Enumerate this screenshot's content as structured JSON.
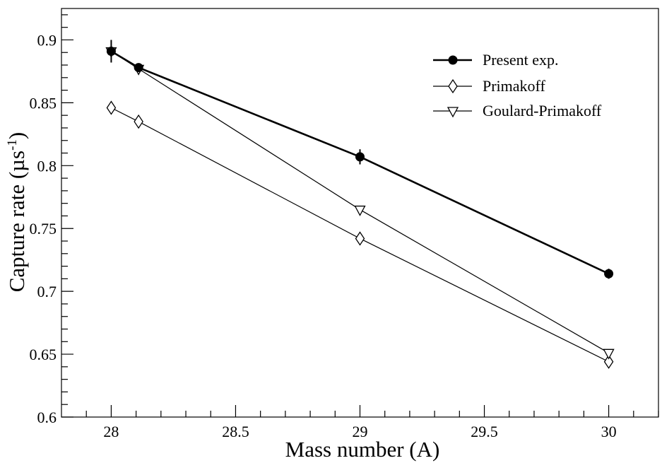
{
  "chart_data": {
    "type": "line",
    "title": "",
    "xlabel": "Mass number (A)",
    "ylabel": "Capture rate (µs⁻¹)",
    "ylabel_main": "Capture rate (µs",
    "ylabel_sup": "-1",
    "ylabel_close": ")",
    "xlim": [
      27.8,
      30.2
    ],
    "ylim": [
      0.6,
      0.925
    ],
    "x_ticks": [
      28,
      28.5,
      29,
      29.5,
      30
    ],
    "x_tick_labels": [
      "28",
      "28.5",
      "29",
      "29.5",
      "30"
    ],
    "y_ticks": [
      0.6,
      0.65,
      0.7,
      0.75,
      0.8,
      0.85,
      0.9
    ],
    "y_tick_labels": [
      "0.6",
      "0.65",
      "0.7",
      "0.75",
      "0.8",
      "0.85",
      "0.9"
    ],
    "grid": false,
    "legend_position": "top-right",
    "series": [
      {
        "name": "Present exp.",
        "marker": "filled-circle",
        "x": [
          28,
          28.11,
          29,
          30
        ],
        "y": [
          0.891,
          0.878,
          0.807,
          0.714
        ],
        "yerr": [
          0.009,
          0.002,
          0.006,
          0.004
        ]
      },
      {
        "name": "Primakoff",
        "marker": "open-diamond",
        "x": [
          28,
          28.11,
          29,
          30
        ],
        "y": [
          0.846,
          0.835,
          0.742,
          0.644
        ]
      },
      {
        "name": "Goulard-Primakoff",
        "marker": "open-triangle-down",
        "x": [
          28,
          28.11,
          29,
          30
        ],
        "y": [
          0.891,
          0.877,
          0.765,
          0.651
        ]
      }
    ]
  }
}
